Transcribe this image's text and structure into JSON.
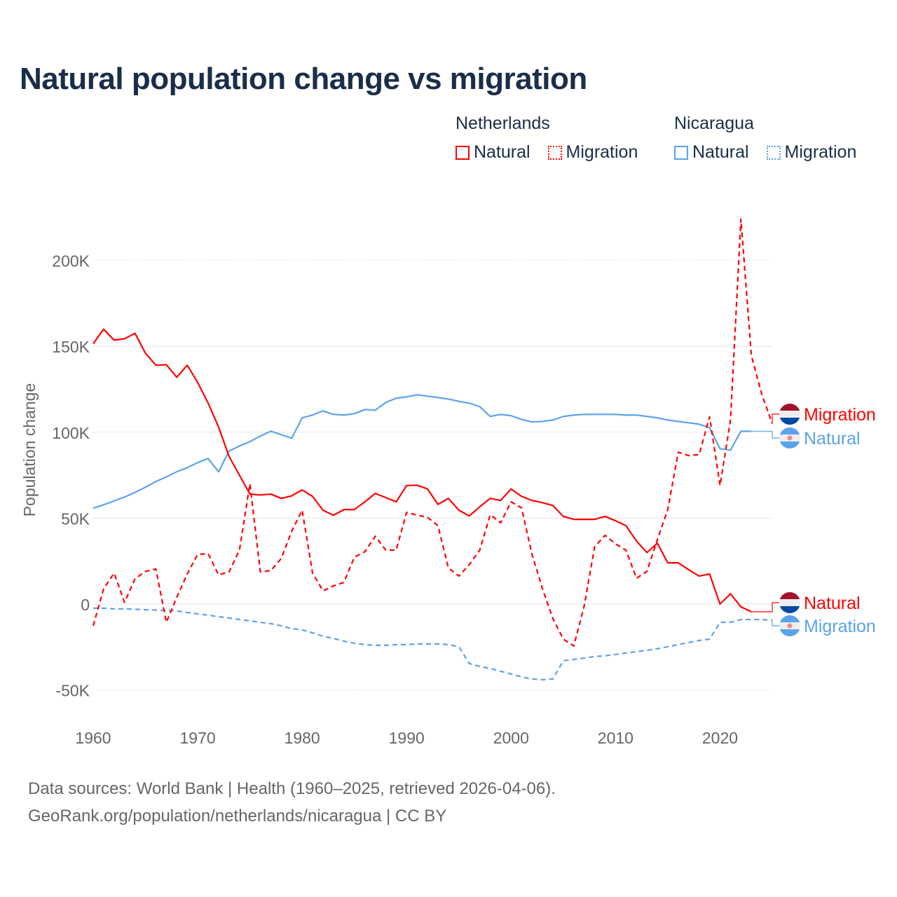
{
  "colors": {
    "netherlands": "#ff0000",
    "nicaragua": "#5ba3ec",
    "title": "#1a2e4a",
    "grid": "#e6e6e6",
    "axis_text": "#666666"
  },
  "chart_data": {
    "type": "line",
    "title": "Natural population change vs migration",
    "xlabel": "",
    "ylabel": "Population change",
    "xlim": [
      1960,
      2025
    ],
    "ylim": [
      -50000,
      225000
    ],
    "x_ticks": [
      1960,
      1970,
      1980,
      1990,
      2000,
      2010,
      2020
    ],
    "x_tick_labels": [
      "1960",
      "1970",
      "1980",
      "1990",
      "2000",
      "2010",
      "2020"
    ],
    "y_ticks": [
      -50000,
      0,
      50000,
      100000,
      150000,
      200000
    ],
    "y_tick_labels": [
      "-50K",
      "0",
      "50K",
      "100K",
      "150K",
      "200K"
    ],
    "grid": true,
    "legend": {
      "placement": "top-right",
      "groups": [
        {
          "country": "Netherlands",
          "items": [
            "Natural",
            "Migration"
          ]
        },
        {
          "country": "Nicaragua",
          "items": [
            "Natural",
            "Migration"
          ]
        }
      ]
    },
    "series": [
      {
        "name": "Netherlands Natural",
        "country": "netherlands",
        "kind": "Natural",
        "dash": false,
        "start_year": 1960,
        "end_label": "Natural",
        "values": [
          151500,
          160000,
          153600,
          154400,
          157600,
          146000,
          139000,
          139300,
          132000,
          139000,
          129000,
          117000,
          103000,
          86000,
          75000,
          64000,
          63500,
          64000,
          61500,
          63000,
          66400,
          62700,
          54600,
          51700,
          55000,
          55000,
          59500,
          64400,
          62000,
          59500,
          69000,
          69200,
          67000,
          58000,
          61500,
          54600,
          51300,
          56600,
          61500,
          60300,
          67000,
          62700,
          60300,
          59000,
          57400,
          51000,
          49300,
          49300,
          49300,
          51000,
          48500,
          45600,
          36700,
          30000,
          35400,
          24000,
          24000,
          20000,
          16300,
          17500,
          0,
          6000,
          -1600,
          -4500
        ]
      },
      {
        "name": "Netherlands Migration",
        "country": "netherlands",
        "kind": "Migration",
        "dash": true,
        "start_year": 1960,
        "end_label": "Migration",
        "values": [
          -12600,
          9000,
          18000,
          1000,
          14700,
          19000,
          20400,
          -10600,
          4000,
          17500,
          29000,
          29300,
          17000,
          18700,
          31400,
          70000,
          18700,
          19500,
          26500,
          42400,
          54600,
          18000,
          7700,
          10600,
          12600,
          27300,
          30500,
          39500,
          31400,
          31400,
          53400,
          51700,
          50500,
          45600,
          21000,
          16300,
          23000,
          31400,
          52000,
          47300,
          59500,
          56000,
          29000,
          9000,
          -8500,
          -20400,
          -24400,
          -1000,
          33400,
          40000,
          35000,
          31400,
          15000,
          19000,
          37500,
          55000,
          88400,
          86400,
          87000,
          109000,
          69000,
          107000,
          224000,
          144600,
          122000,
          105000
        ]
      },
      {
        "name": "Nicaragua Natural",
        "country": "nicaragua",
        "kind": "Natural",
        "dash": false,
        "start_year": 1960,
        "end_label": "Natural",
        "values": [
          55800,
          57800,
          60000,
          62300,
          65000,
          68000,
          71300,
          74000,
          77000,
          79400,
          82300,
          84700,
          77000,
          89000,
          92000,
          94500,
          97800,
          100600,
          98600,
          96500,
          108400,
          110000,
          112400,
          110400,
          110000,
          110800,
          113200,
          112800,
          117300,
          119800,
          120600,
          121800,
          121000,
          120200,
          119300,
          118000,
          116900,
          114900,
          109200,
          110400,
          109600,
          107500,
          106000,
          106300,
          107100,
          109200,
          110000,
          110400,
          110400,
          110400,
          110400,
          110000,
          110000,
          109200,
          108400,
          107100,
          106300,
          105500,
          104700,
          102600,
          90400,
          89600,
          100600,
          100600
        ]
      },
      {
        "name": "Nicaragua Migration",
        "country": "nicaragua",
        "kind": "Migration",
        "dash": true,
        "start_year": 1960,
        "end_label": "Migration",
        "values": [
          -2400,
          -2400,
          -2800,
          -2800,
          -3000,
          -3300,
          -3500,
          -3700,
          -4000,
          -4900,
          -5700,
          -6500,
          -7300,
          -8100,
          -9000,
          -9800,
          -10600,
          -11400,
          -12600,
          -14300,
          -15000,
          -16700,
          -18700,
          -20000,
          -21600,
          -22800,
          -23600,
          -24000,
          -24000,
          -23600,
          -23600,
          -23200,
          -23200,
          -23200,
          -23600,
          -24800,
          -34600,
          -36300,
          -37500,
          -39100,
          -40700,
          -42400,
          -43600,
          -44000,
          -43600,
          -33000,
          -32200,
          -31400,
          -30500,
          -30100,
          -29300,
          -28500,
          -27700,
          -26900,
          -26000,
          -24800,
          -23600,
          -22400,
          -21200,
          -20400,
          -10600,
          -10600,
          -9000,
          -9000,
          -9000,
          -9400
        ]
      }
    ]
  },
  "legend": {
    "netherlands": {
      "heading": "Netherlands",
      "natural": "Natural",
      "migration": "Migration"
    },
    "nicaragua": {
      "heading": "Nicaragua",
      "natural": "Natural",
      "migration": "Migration"
    }
  },
  "footer": {
    "line1": "Data sources: World Bank | Health (1960–2025, retrieved 2026-04-06).",
    "line2": "GeoRank.org/population/netherlands/nicaragua | CC BY"
  }
}
